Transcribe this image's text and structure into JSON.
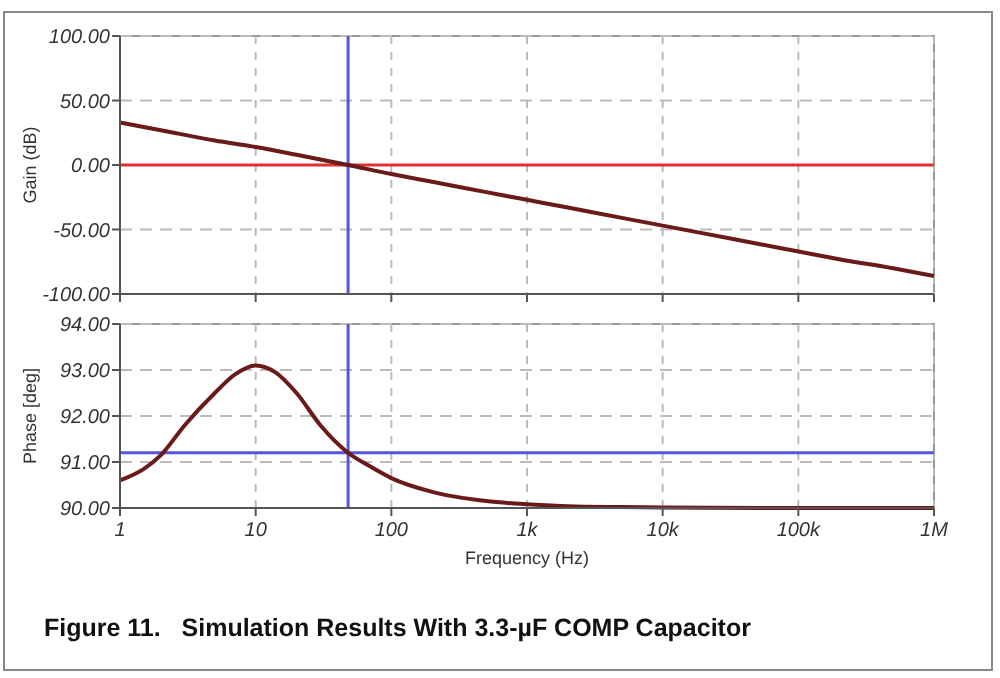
{
  "chart_data": [
    {
      "type": "line",
      "ylabel": "Gain (dB)",
      "log": "x",
      "grid": true,
      "tick_labels": "y",
      "xlim": [
        1,
        1000000
      ],
      "xticks": [
        {
          "value": 1,
          "label": null
        },
        {
          "value": 10,
          "label": null
        },
        {
          "value": 100,
          "label": null
        },
        {
          "value": 1000,
          "label": null
        },
        {
          "value": 10000,
          "label": null
        },
        {
          "value": 100000,
          "label": null
        },
        {
          "value": 1000000,
          "label": null
        }
      ],
      "ylim": [
        -100,
        100
      ],
      "yticks": [
        {
          "value": -100,
          "label": "-100.00"
        },
        {
          "value": -50,
          "label": "-50.00"
        },
        {
          "value": 0,
          "label": "0.00"
        },
        {
          "value": 50,
          "label": "50.00"
        },
        {
          "value": 100,
          "label": "100.00"
        }
      ],
      "x": [
        1,
        2,
        5,
        10,
        20,
        48,
        100,
        200,
        500,
        1000,
        2000,
        5000,
        10000,
        20000,
        50000,
        100000,
        200000,
        500000,
        1000000
      ],
      "series": [
        {
          "color": "#6b1a1a",
          "values": [
            33,
            27,
            19,
            14,
            8,
            0,
            -7,
            -13,
            -21,
            -27,
            -33,
            -41,
            -47,
            -53,
            -61,
            -67,
            -73,
            -80,
            -86
          ]
        }
      ],
      "ref_lines": [
        {
          "axis": "y",
          "value": 0,
          "color": "#e03030"
        },
        {
          "axis": "x",
          "value": 48,
          "color": "#5555dd"
        }
      ]
    },
    {
      "type": "line",
      "ylabel": "Phase [deg]",
      "xlabel": "Frequency (Hz)",
      "log": "x",
      "grid": true,
      "xlim": [
        1,
        1000000
      ],
      "xticks": [
        {
          "value": 1,
          "label": "1"
        },
        {
          "value": 10,
          "label": "10"
        },
        {
          "value": 100,
          "label": "100"
        },
        {
          "value": 1000,
          "label": "1k"
        },
        {
          "value": 10000,
          "label": "10k"
        },
        {
          "value": 100000,
          "label": "100k"
        },
        {
          "value": 1000000,
          "label": "1M"
        }
      ],
      "ylim": [
        90,
        94
      ],
      "yticks": [
        {
          "value": 90,
          "label": "90.00"
        },
        {
          "value": 91,
          "label": "91.00"
        },
        {
          "value": 92,
          "label": "92.00"
        },
        {
          "value": 93,
          "label": "93.00"
        },
        {
          "value": 94,
          "label": "94.00"
        }
      ],
      "x": [
        1,
        1.5,
        2,
        3,
        5,
        7,
        10,
        14,
        20,
        30,
        48,
        70,
        100,
        200,
        500,
        1000,
        2000,
        5000,
        10000,
        100000,
        1000000
      ],
      "series": [
        {
          "color": "#6b1a1a",
          "values": [
            90.6,
            90.85,
            91.15,
            91.8,
            92.5,
            92.9,
            93.1,
            92.95,
            92.5,
            91.8,
            91.2,
            90.9,
            90.65,
            90.35,
            90.15,
            90.08,
            90.04,
            90.02,
            90.01,
            90.0,
            90.0
          ]
        }
      ],
      "ref_lines": [
        {
          "axis": "y",
          "value": 91.2,
          "color": "#5555dd"
        },
        {
          "axis": "x",
          "value": 48,
          "color": "#5555dd"
        }
      ],
      "annotations": [
        "Figure 11.   Simulation Results With 3.3-µF COMP Capacitor"
      ]
    }
  ]
}
